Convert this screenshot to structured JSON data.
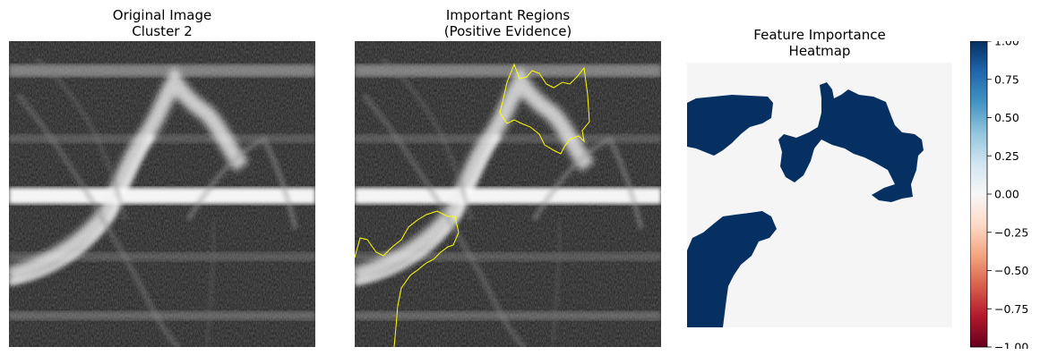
{
  "panels": [
    {
      "title_line1": "Original Image",
      "title_line2": "Cluster 2"
    },
    {
      "title_line1": "Important Regions",
      "title_line2": "(Positive Evidence)"
    },
    {
      "title_line1": "Feature Importance",
      "title_line2": "Heatmap"
    }
  ],
  "colors": {
    "contour": "#ffff00",
    "heat_positive": "#053061",
    "heat_zero": "#f5f5f5",
    "colormap": [
      "#67001f",
      "#b2182b",
      "#d6604d",
      "#f4a582",
      "#fddbc7",
      "#f7f7f7",
      "#d1e5f0",
      "#92c5de",
      "#4393c3",
      "#2166ac",
      "#053061"
    ]
  },
  "chart_data": {
    "type": "heatmap",
    "colormap": "RdBu",
    "colorbar": {
      "vmin": -1.0,
      "vmax": 1.0,
      "ticks": [
        "1.00",
        "0.75",
        "0.50",
        "0.25",
        "0.00",
        "−0.25",
        "−0.50",
        "−0.75",
        "−1.00"
      ]
    },
    "axes_visible": false
  }
}
